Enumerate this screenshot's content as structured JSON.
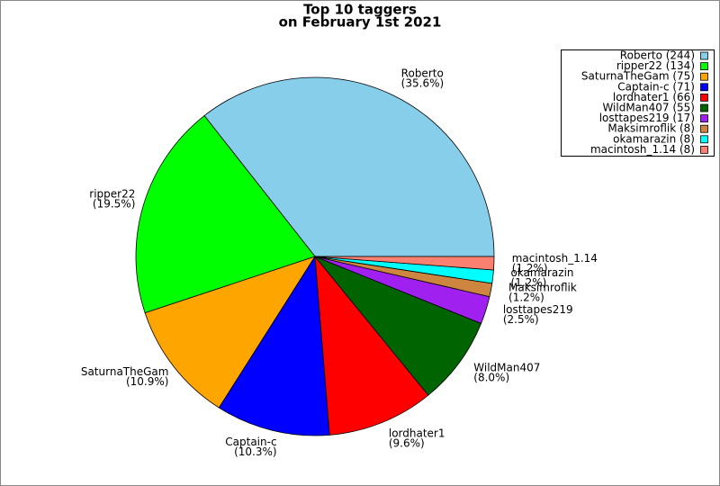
{
  "chart_data": {
    "type": "pie",
    "title": "Top 10 taggers",
    "subtitle": "on February 1st 2021",
    "categories": [
      "Roberto",
      "ripper22",
      "SaturnaTheGam",
      "Captain-c",
      "lordhater1",
      "WildMan407",
      "losttapes219",
      "Maksimroflik",
      "okamarazin",
      "macintosh_1.14"
    ],
    "values": [
      35.6,
      19.5,
      10.9,
      10.3,
      9.6,
      8.0,
      2.5,
      1.2,
      1.2,
      1.2
    ],
    "value_labels": [
      "(35.6%)",
      "(19.5%)",
      "(10.9%)",
      "(10.3%)",
      "(9.6%)",
      "(8.0%)",
      "(2.5%)",
      "(1.2%)",
      "(1.2%)",
      "(1.2%)"
    ],
    "legend_labels": [
      "Roberto (244)",
      "ripper22 (134)",
      "SaturnaTheGam (75)",
      "Captain-c (71)",
      "lordhater1 (66)",
      "WildMan407 (55)",
      "losttapes219 (17)",
      "Maksimroflik (8)",
      "okamarazin (8)",
      "macintosh_1.14 (8)"
    ],
    "colors": [
      "#87ceeb",
      "#00ff00",
      "#ffa500",
      "#0000ff",
      "#ff0000",
      "#006400",
      "#a020f0",
      "#cd853f",
      "#00ffff",
      "#fa8072"
    ],
    "legend": "upper right"
  }
}
